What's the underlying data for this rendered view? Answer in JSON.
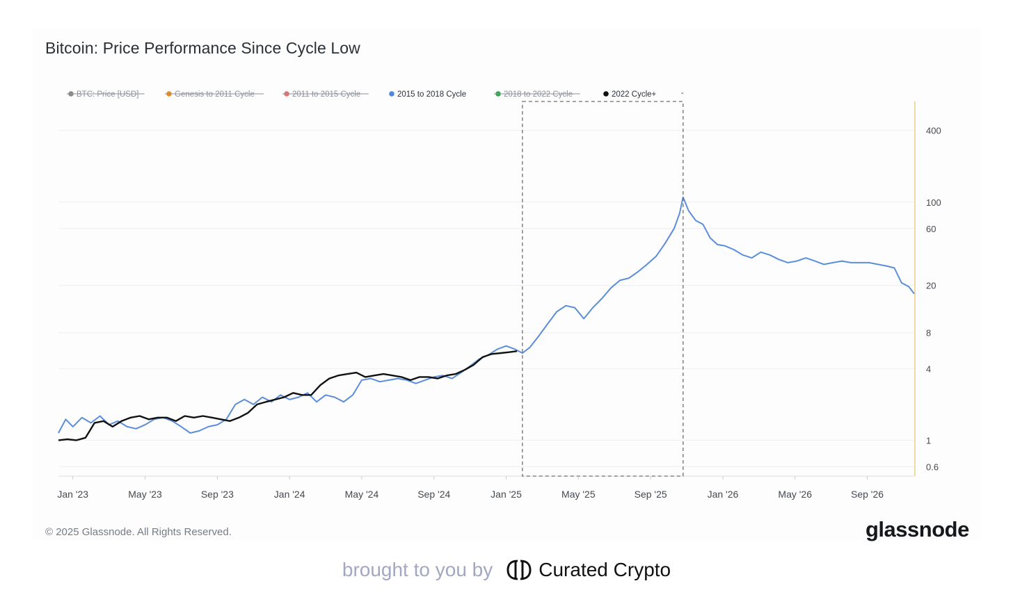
{
  "chart_data": {
    "type": "line",
    "title": "Bitcoin: Price Performance Since Cycle Low",
    "y_scale": "log",
    "ylim": [
      0.5,
      700
    ],
    "y_ticks": [
      0.6,
      1,
      4,
      8,
      20,
      60,
      100,
      400
    ],
    "x_ticks": [
      "Jan '23",
      "May '23",
      "Sep '23",
      "Jan '24",
      "May '24",
      "Sep '24",
      "Jan '25",
      "May '25",
      "Sep '25",
      "Jan '26",
      "May '26",
      "Sep '26"
    ],
    "x_range_months": [
      -0.8,
      46.6
    ],
    "x_unit": "months since Jan 2023",
    "highlight_region": {
      "x_start": 24.9,
      "x_end": 33.8,
      "label": "-"
    },
    "legend": [
      {
        "name": "BTC: Price [USD]",
        "color": "#8a8a8a",
        "active": false
      },
      {
        "name": "Genesis to 2011 Cycle",
        "color": "#f08c1a",
        "active": false
      },
      {
        "name": "2011 to 2015 Cycle",
        "color": "#e87272",
        "active": false
      },
      {
        "name": "2015 to 2018 Cycle",
        "color": "#4f86d9",
        "active": true
      },
      {
        "name": "2018 to 2022 Cycle",
        "color": "#2fa84f",
        "active": false
      },
      {
        "name": "2022 Cycle+",
        "color": "#111111",
        "active": true
      }
    ],
    "series": [
      {
        "name": "2015 to 2018 Cycle",
        "color": "#5b8dd9",
        "x": [
          -0.8,
          -0.4,
          0,
          0.5,
          1,
          1.5,
          2,
          2.5,
          3,
          3.5,
          4,
          4.5,
          5,
          5.5,
          6,
          6.5,
          7,
          7.5,
          8,
          8.5,
          9,
          9.5,
          10,
          10.5,
          11,
          11.5,
          12,
          12.5,
          13,
          13.5,
          14,
          14.5,
          15,
          15.5,
          16,
          16.5,
          17,
          17.5,
          18,
          18.5,
          19,
          19.5,
          20,
          20.5,
          21,
          21.5,
          22,
          22.5,
          23,
          23.5,
          24,
          24.5,
          24.9,
          25.3,
          25.8,
          26.3,
          26.8,
          27.3,
          27.8,
          28.3,
          28.8,
          29.3,
          29.8,
          30.3,
          30.8,
          31.3,
          31.8,
          32.3,
          32.8,
          33.3,
          33.6,
          33.8,
          34.1,
          34.5,
          34.9,
          35.3,
          35.7,
          36.1,
          36.6,
          37.1,
          37.6,
          38.1,
          38.6,
          39.1,
          39.6,
          40.1,
          40.6,
          41.1,
          41.6,
          42.1,
          42.6,
          43.1,
          43.6,
          44.1,
          44.6,
          45.1,
          45.5,
          45.9,
          46.3,
          46.6
        ],
        "y": [
          1.15,
          1.5,
          1.3,
          1.55,
          1.4,
          1.6,
          1.35,
          1.45,
          1.3,
          1.25,
          1.35,
          1.5,
          1.55,
          1.45,
          1.3,
          1.15,
          1.2,
          1.3,
          1.35,
          1.5,
          2.0,
          2.2,
          2.0,
          2.3,
          2.1,
          2.4,
          2.2,
          2.3,
          2.5,
          2.1,
          2.4,
          2.3,
          2.1,
          2.4,
          3.2,
          3.3,
          3.1,
          3.2,
          3.3,
          3.2,
          3.0,
          3.2,
          3.4,
          3.5,
          3.3,
          3.7,
          4.2,
          4.8,
          5.2,
          5.8,
          6.2,
          5.8,
          5.4,
          6.0,
          7.5,
          9.5,
          12.0,
          13.5,
          13.0,
          10.5,
          13.0,
          15.5,
          19.0,
          22.0,
          23.0,
          26.0,
          30.0,
          35.0,
          45.0,
          60.0,
          80.0,
          110.0,
          85.0,
          70.0,
          65.0,
          50.0,
          44.0,
          43.0,
          40.0,
          36.0,
          34.0,
          38.0,
          36.0,
          33.0,
          31.0,
          32.0,
          34.0,
          32.0,
          30.0,
          31.0,
          32.0,
          31.0,
          31.0,
          31.0,
          30.0,
          29.0,
          28.0,
          21.0,
          19.5,
          17.0
        ]
      },
      {
        "name": "2022 Cycle+",
        "color": "#111111",
        "x": [
          -0.8,
          -0.3,
          0.2,
          0.7,
          1.2,
          1.7,
          2.2,
          2.7,
          3.2,
          3.7,
          4.2,
          4.7,
          5.2,
          5.7,
          6.2,
          6.7,
          7.2,
          7.7,
          8.2,
          8.7,
          9.2,
          9.7,
          10.2,
          10.7,
          11.2,
          11.7,
          12.2,
          12.7,
          13.2,
          13.7,
          14.2,
          14.7,
          15.2,
          15.7,
          16.2,
          16.7,
          17.2,
          17.7,
          18.2,
          18.7,
          19.2,
          19.7,
          20.2,
          20.7,
          21.2,
          21.7,
          22.2,
          22.7,
          23.2,
          23.7,
          24.2,
          24.6
        ],
        "y": [
          1.0,
          1.02,
          1.0,
          1.05,
          1.4,
          1.45,
          1.3,
          1.45,
          1.55,
          1.6,
          1.5,
          1.55,
          1.55,
          1.45,
          1.6,
          1.55,
          1.6,
          1.55,
          1.5,
          1.45,
          1.55,
          1.7,
          2.0,
          2.1,
          2.2,
          2.3,
          2.5,
          2.4,
          2.4,
          2.9,
          3.3,
          3.5,
          3.6,
          3.7,
          3.4,
          3.5,
          3.6,
          3.5,
          3.4,
          3.2,
          3.4,
          3.4,
          3.3,
          3.5,
          3.6,
          3.9,
          4.3,
          5.0,
          5.3,
          5.4,
          5.5,
          5.6
        ]
      }
    ]
  },
  "footer": {
    "copyright": "© 2025 Glassnode. All Rights Reserved.",
    "brand": "glassnode"
  },
  "credit": {
    "text": "brought to you by",
    "name": "Curated Crypto"
  }
}
